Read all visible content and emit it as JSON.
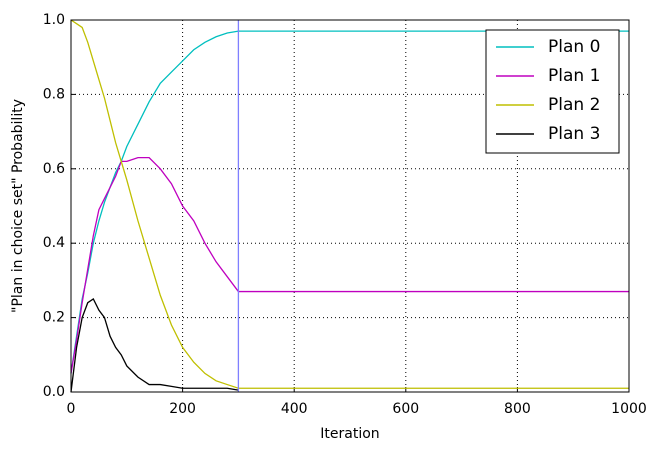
{
  "chart_data": {
    "type": "line",
    "xlabel": "Iteration",
    "ylabel": "\"Plan in choice set\" Probability",
    "x": [
      0,
      10,
      20,
      30,
      40,
      50,
      60,
      70,
      80,
      90,
      100,
      120,
      140,
      160,
      180,
      200,
      220,
      240,
      260,
      280,
      300,
      1000
    ],
    "series": [
      {
        "name": "Plan 0",
        "color": "#00bfbf",
        "values": [
          0.05,
          0.15,
          0.25,
          0.32,
          0.4,
          0.46,
          0.51,
          0.55,
          0.59,
          0.62,
          0.66,
          0.72,
          0.78,
          0.83,
          0.86,
          0.89,
          0.92,
          0.94,
          0.955,
          0.965,
          0.97,
          0.97
        ]
      },
      {
        "name": "Plan 1",
        "color": "#bf00bf",
        "values": [
          0.05,
          0.14,
          0.24,
          0.33,
          0.42,
          0.49,
          0.52,
          0.55,
          0.58,
          0.62,
          0.62,
          0.63,
          0.63,
          0.6,
          0.56,
          0.5,
          0.46,
          0.4,
          0.35,
          0.31,
          0.27,
          0.27
        ]
      },
      {
        "name": "Plan 2",
        "color": "#bfbf00",
        "values": [
          1.0,
          0.99,
          0.98,
          0.94,
          0.89,
          0.84,
          0.79,
          0.73,
          0.67,
          0.62,
          0.57,
          0.46,
          0.36,
          0.26,
          0.18,
          0.12,
          0.08,
          0.05,
          0.03,
          0.02,
          0.01,
          0.01
        ]
      },
      {
        "name": "Plan 3",
        "color": "#000000",
        "values": [
          0.0,
          0.12,
          0.2,
          0.24,
          0.25,
          0.22,
          0.2,
          0.15,
          0.12,
          0.1,
          0.07,
          0.04,
          0.02,
          0.02,
          0.015,
          0.01,
          0.01,
          0.01,
          0.01,
          0.01,
          0.005,
          null
        ]
      }
    ],
    "vline": 300,
    "vline_color": "#7f7fff",
    "xlim": [
      0,
      1000
    ],
    "ylim": [
      0,
      1
    ],
    "xticks": [
      0,
      200,
      400,
      600,
      800,
      1000
    ],
    "yticks": [
      {
        "value": 0,
        "label": "0.0"
      },
      0.2,
      0.4,
      0.6,
      0.8,
      {
        "value": 1,
        "label": "1.0"
      }
    ],
    "grid": true,
    "legend": "upper right"
  }
}
